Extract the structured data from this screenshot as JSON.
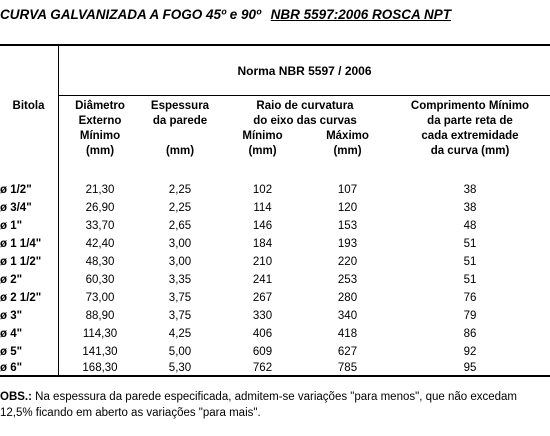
{
  "title": {
    "main": "CURVA GALVANIZADA A FOGO 45º e 90º",
    "standard": "NBR 5597:2006 ROSCA NPT"
  },
  "table": {
    "group_header": "Norma NBR 5597 / 2006",
    "headers": {
      "bitola": "Bitola",
      "diametro": [
        "Diâmetro",
        "Externo",
        "Mínimo",
        "(mm)"
      ],
      "espessura": [
        "Espessura",
        "da parede",
        "(mm)"
      ],
      "raio": [
        "Raio de curvatura",
        "do eixo das curvas"
      ],
      "raio_min": [
        "Mínimo",
        "(mm)"
      ],
      "raio_max": [
        "Máximo",
        "(mm)"
      ],
      "comprimento": [
        "Comprimento Mínimo",
        "da parte reta de",
        "cada extremidade",
        "da curva (mm)"
      ]
    },
    "rows": [
      {
        "bitola": "ø 1/2\"",
        "diametro": "21,30",
        "espessura": "2,25",
        "raio_min": "102",
        "raio_max": "107",
        "comprimento": "38"
      },
      {
        "bitola": "ø 3/4\"",
        "diametro": "26,90",
        "espessura": "2,25",
        "raio_min": "114",
        "raio_max": "120",
        "comprimento": "38"
      },
      {
        "bitola": "ø 1\"",
        "diametro": "33,70",
        "espessura": "2,65",
        "raio_min": "146",
        "raio_max": "153",
        "comprimento": "48"
      },
      {
        "bitola": "ø 1 1/4\"",
        "diametro": "42,40",
        "espessura": "3,00",
        "raio_min": "184",
        "raio_max": "193",
        "comprimento": "51"
      },
      {
        "bitola": "ø 1 1/2\"",
        "diametro": "48,30",
        "espessura": "3,00",
        "raio_min": "210",
        "raio_max": "220",
        "comprimento": "51"
      },
      {
        "bitola": "ø 2\"",
        "diametro": "60,30",
        "espessura": "3,35",
        "raio_min": "241",
        "raio_max": "253",
        "comprimento": "51"
      },
      {
        "bitola": "ø 2 1/2\"",
        "diametro": "73,00",
        "espessura": "3,75",
        "raio_min": "267",
        "raio_max": "280",
        "comprimento": "76"
      },
      {
        "bitola": "ø 3\"",
        "diametro": "88,90",
        "espessura": "3,75",
        "raio_min": "330",
        "raio_max": "340",
        "comprimento": "79"
      },
      {
        "bitola": "ø 4\"",
        "diametro": "114,30",
        "espessura": "4,25",
        "raio_min": "406",
        "raio_max": "418",
        "comprimento": "86"
      },
      {
        "bitola": "ø 5\"",
        "diametro": "141,30",
        "espessura": "5,00",
        "raio_min": "609",
        "raio_max": "627",
        "comprimento": "92"
      },
      {
        "bitola": "ø 6\"",
        "diametro": "168,30",
        "espessura": "5,30",
        "raio_min": "762",
        "raio_max": "785",
        "comprimento": "95"
      }
    ]
  },
  "note": {
    "label": "OBS.:",
    "text": "Na espessura da parede especificada, admitem-se variações \"para menos\", que não excedam 12,5% ficando em aberto as variações \"para mais\"."
  }
}
